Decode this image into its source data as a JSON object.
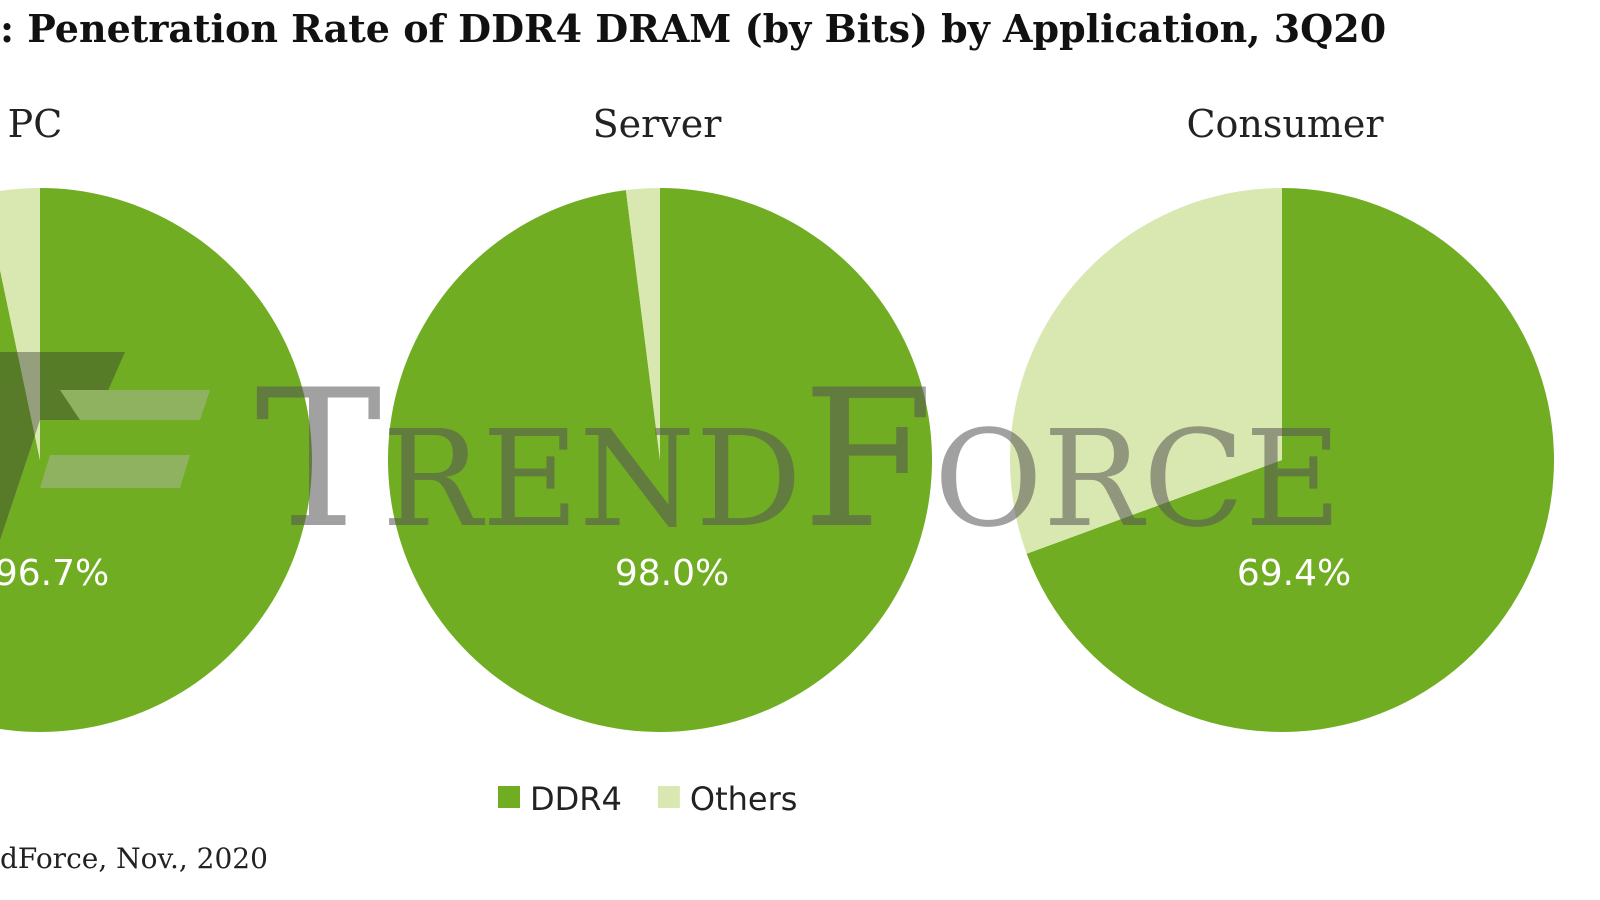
{
  "title": ": Penetration Rate of DDR4 DRAM (by Bits) by Application, 3Q20",
  "source": "dForce, Nov., 2020",
  "watermark": "TrendForce",
  "legend": {
    "categories": [
      "DDR4",
      "Others"
    ],
    "colors": [
      "#70ad22",
      "#d9e8b0"
    ]
  },
  "chart_data": [
    {
      "type": "pie",
      "title": "PC",
      "values": [
        96.7,
        3.3
      ],
      "value_labels": [
        "96.7%",
        null
      ]
    },
    {
      "type": "pie",
      "title": "Server",
      "values": [
        98.0,
        2.0
      ],
      "value_labels": [
        "98.0%",
        null
      ]
    },
    {
      "type": "pie",
      "title": "Consumer",
      "values": [
        69.4,
        30.6
      ],
      "value_labels": [
        "69.4%",
        null
      ]
    }
  ]
}
